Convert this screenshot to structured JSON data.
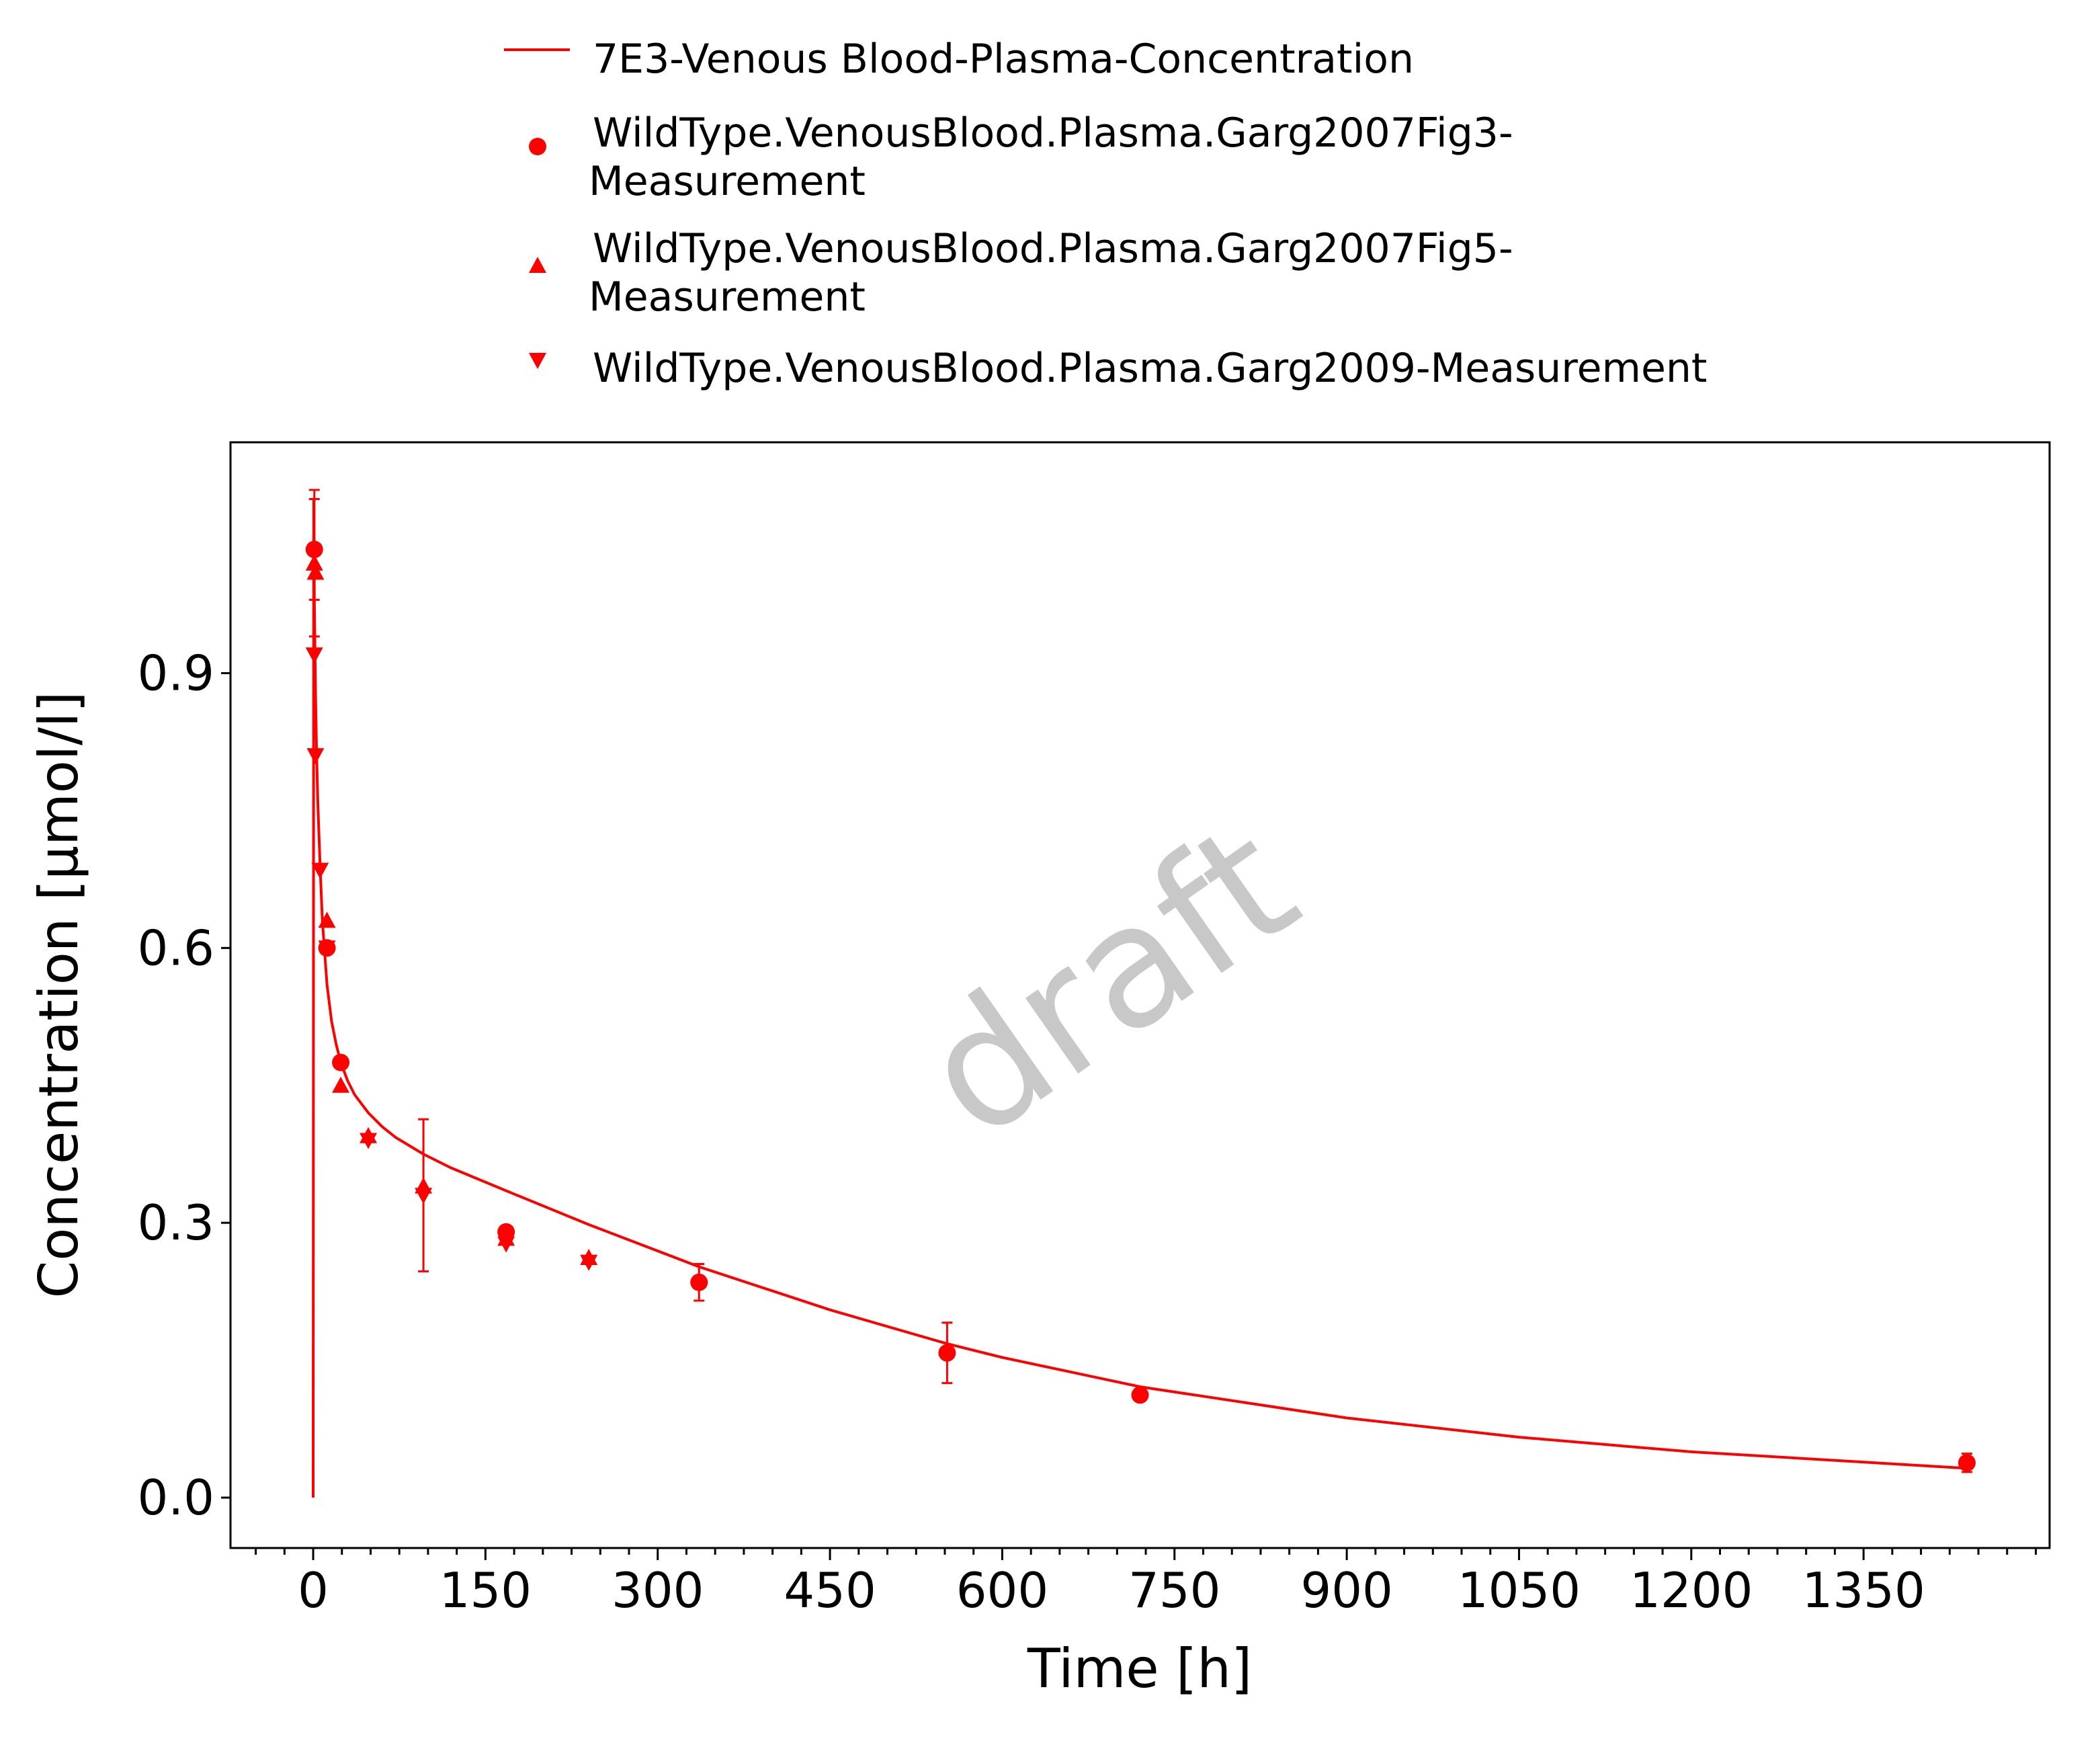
{
  "chart_data": {
    "type": "scatter",
    "watermark": "draft",
    "xlabel": "Time [h]",
    "ylabel": "Concentration [µmol/l]",
    "xlim": [
      -72,
      1512
    ],
    "ylim": [
      -0.055,
      1.152
    ],
    "x_ticks": [
      0,
      150,
      300,
      450,
      600,
      750,
      900,
      1050,
      1200,
      1350
    ],
    "x_tick_labels": [
      "0",
      "150",
      "300",
      "450",
      "600",
      "750",
      "900",
      "1050",
      "1200",
      "1350"
    ],
    "y_ticks": [
      0.0,
      0.3,
      0.6,
      0.9
    ],
    "y_tick_labels": [
      "0.0",
      "0.3",
      "0.6",
      "0.9"
    ],
    "grid": false,
    "legend_position": "top",
    "color": "#ff0000",
    "series": [
      {
        "name": "7E3-Venous Blood-Plasma-Concentration",
        "kind": "line",
        "x": [
          0,
          0.5,
          1,
          2,
          3,
          4,
          6,
          8,
          12,
          16,
          20,
          24,
          30,
          36,
          48,
          60,
          72,
          96,
          120,
          168,
          240,
          336,
          450,
          552,
          600,
          720,
          900,
          1050,
          1200,
          1440
        ],
        "y": [
          0,
          1.09,
          0.98,
          0.88,
          0.81,
          0.76,
          0.69,
          0.63,
          0.56,
          0.52,
          0.495,
          0.475,
          0.455,
          0.44,
          0.42,
          0.405,
          0.393,
          0.375,
          0.36,
          0.335,
          0.298,
          0.252,
          0.205,
          0.168,
          0.153,
          0.121,
          0.087,
          0.066,
          0.05,
          0.032
        ]
      },
      {
        "name": "WildType.VenousBlood.Plasma.Garg2007Fig3-Measurement",
        "kind": "scatter",
        "marker": "circle",
        "x": [
          1,
          12,
          24,
          168,
          336,
          552,
          720,
          1440
        ],
        "y": [
          1.035,
          0.6,
          0.475,
          0.29,
          0.235,
          0.158,
          0.112,
          0.038
        ],
        "err": [
          0.055,
          0,
          0,
          0,
          0.02,
          0.033,
          0,
          0.01
        ]
      },
      {
        "name": "WildType.VenousBlood.Plasma.Garg2007Fig5-Measurement",
        "kind": "scatter",
        "marker": "triangle-up",
        "x": [
          1,
          2,
          12,
          24,
          48,
          96,
          168,
          240
        ],
        "y": [
          1.02,
          1.01,
          0.63,
          0.45,
          0.395,
          0.34,
          0.283,
          0.262
        ],
        "err": [
          0.08,
          0,
          0,
          0,
          0,
          0,
          0,
          0
        ]
      },
      {
        "name": "WildType.VenousBlood.Plasma.Garg2009-Measurement",
        "kind": "scatter",
        "marker": "triangle-down",
        "x": [
          1,
          2,
          6,
          12,
          48,
          96,
          168,
          240
        ],
        "y": [
          0.92,
          0.81,
          0.685,
          0.6,
          0.39,
          0.33,
          0.277,
          0.257
        ],
        "err": [
          0,
          0,
          0,
          0,
          0,
          0.083,
          0,
          0
        ]
      }
    ]
  }
}
